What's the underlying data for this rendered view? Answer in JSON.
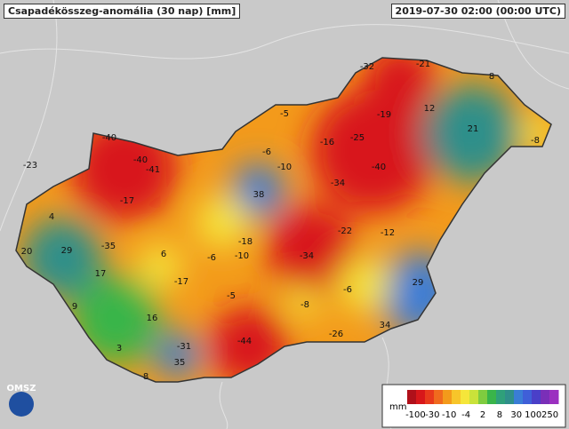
{
  "title": "Csapadékösszeg-anomália (30 nap) [mm]",
  "timestamp": "2019-07-30 02:00 (00:00 UTC)",
  "logo": "OMSZ",
  "legend": {
    "unit": "mm",
    "ticks": [
      -100,
      -30,
      -10,
      -4,
      2,
      8,
      30,
      100,
      250
    ],
    "colors": [
      "#b0101a",
      "#d8171a",
      "#e83a1c",
      "#f06a1e",
      "#f39a1b",
      "#f7c52a",
      "#f5e63a",
      "#c9e23a",
      "#7fcc3f",
      "#39b54a",
      "#2fa07a",
      "#2f8f8a",
      "#3a7dd6",
      "#3f5fd8",
      "#4a3fc8",
      "#7a2fb8",
      "#9b30c0"
    ]
  },
  "stations": [
    -32,
    -21,
    8,
    -40,
    -23,
    -40,
    -41,
    -5,
    12,
    -19,
    21,
    -8,
    -16,
    -25,
    -6,
    -10,
    -40,
    -17,
    38,
    -34,
    4,
    -35,
    29,
    20,
    6,
    -18,
    -6,
    -10,
    -34,
    -22,
    -12,
    17,
    -17,
    -5,
    -6,
    29,
    9,
    -8,
    16,
    34,
    -26,
    -44,
    -31,
    3,
    35,
    8
  ]
}
